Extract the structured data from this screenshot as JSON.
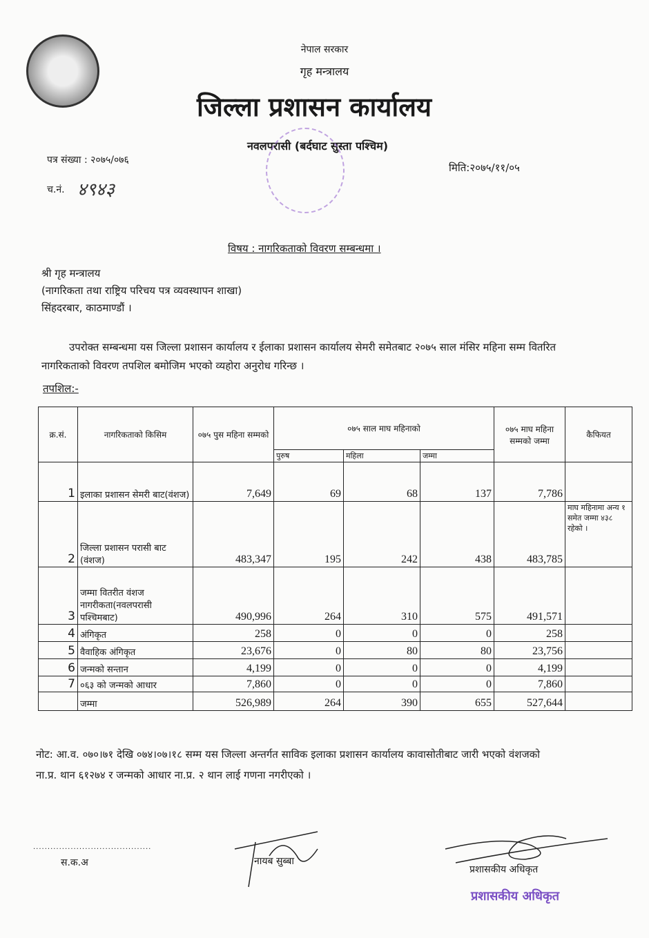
{
  "header": {
    "gov": "नेपाल सरकार",
    "ministry": "गृह मन्त्रालय",
    "office": "जिल्ला प्रशासन कार्यालय",
    "district": "नवलपरासी (बर्दघाट सुस्ता पश्चिम)"
  },
  "ref": {
    "letter_no": "पत्र संख्या : २०७५/०७६",
    "dispatch_label": "च.नं.",
    "dispatch_no": "४९४३",
    "date": "मिति:२०७५/११/०५"
  },
  "subject": "विषय : नागरिकताको विवरण सम्बन्धमा ।",
  "recipient": [
    "श्री गृह मन्त्रालय",
    "(नागरिकता तथा राष्ट्रिय परिचय पत्र व्यवस्थापन शाखा)",
    "सिंहदरबार, काठमाण्डौं ।"
  ],
  "body": "उपरोक्त सम्बन्धमा यस जिल्ला प्रशासन कार्यालय र ईलाका प्रशासन कार्यालय सेमरी समेतबाट २०७५ साल मंसिर महिना सम्म वितरित नागरिकताको विवरण तपशिल बमोजिम भएको व्यहोरा अनुरोध गरिन्छ ।",
  "schedule_label": "तपशिल:-",
  "table": {
    "headers": {
      "sn": "क्र.सं.",
      "type": "नागरिकताको किसिम",
      "till_push": "०७५ पुस महिना सम्मको",
      "magh": "०७५ साल माघ महिनाको",
      "male": "पुरुष",
      "female": "महिला",
      "total": "जम्मा",
      "till_magh": "०७५ माघ महिना सम्मको जम्मा",
      "remarks": "कैफियत"
    },
    "rows": [
      {
        "sn": "1",
        "type": "इलाका प्रशासन सेमरी बाट(वंशज)",
        "till_push": "7,649",
        "male": "69",
        "female": "68",
        "total": "137",
        "till_magh": "7,786",
        "remarks": ""
      },
      {
        "sn": "2",
        "type": "जिल्ला प्रशासन परासी बाट (वंशज)",
        "till_push": "483,347",
        "male": "195",
        "female": "242",
        "total": "438",
        "till_magh": "483,785",
        "remarks": "माघ महिनामा अन्य १ समेत जम्मा ४३८ रहेको ।"
      },
      {
        "sn": "3",
        "type": "जम्मा वितरीत वंशज नागरीकता(नवलपरासी पश्चिमबाट)",
        "till_push": "490,996",
        "male": "264",
        "female": "310",
        "total": "575",
        "till_magh": "491,571",
        "remarks": ""
      },
      {
        "sn": "4",
        "type": "अंगिकृत",
        "till_push": "258",
        "male": "0",
        "female": "0",
        "total": "0",
        "till_magh": "258",
        "remarks": ""
      },
      {
        "sn": "5",
        "type": "वैवाहिक अंगिकृत",
        "till_push": "23,676",
        "male": "0",
        "female": "80",
        "total": "80",
        "till_magh": "23,756",
        "remarks": ""
      },
      {
        "sn": "6",
        "type": "जन्मको सन्तान",
        "till_push": "4,199",
        "male": "0",
        "female": "0",
        "total": "0",
        "till_magh": "4,199",
        "remarks": ""
      },
      {
        "sn": "7",
        "type": "०६३ को जन्मको आधार",
        "till_push": "7,860",
        "male": "0",
        "female": "0",
        "total": "0",
        "till_magh": "7,860",
        "remarks": ""
      },
      {
        "sn": "",
        "type": "जम्मा",
        "till_push": "526,989",
        "male": "264",
        "female": "390",
        "total": "655",
        "till_magh": "527,644",
        "remarks": ""
      }
    ]
  },
  "note": "नोट: आ.व. ०७०।७१ देखि ०७४।०७।१८ सम्म यस जिल्ला अन्तर्गत साविक इलाका प्रशासन कार्यालय कावासोतीबाट जारी भएको वंशजको ना.प्र. थान ६१२७४ र जन्मको आधार ना.प्र. २ थान लाई गणना नगरीएको ।",
  "signatures": {
    "left": "स.क.अ",
    "middle": "नायब सुब्बा",
    "right": "प्रशासकीय अधिकृत",
    "stamp": "प्रशासकीय अधिकृत"
  }
}
